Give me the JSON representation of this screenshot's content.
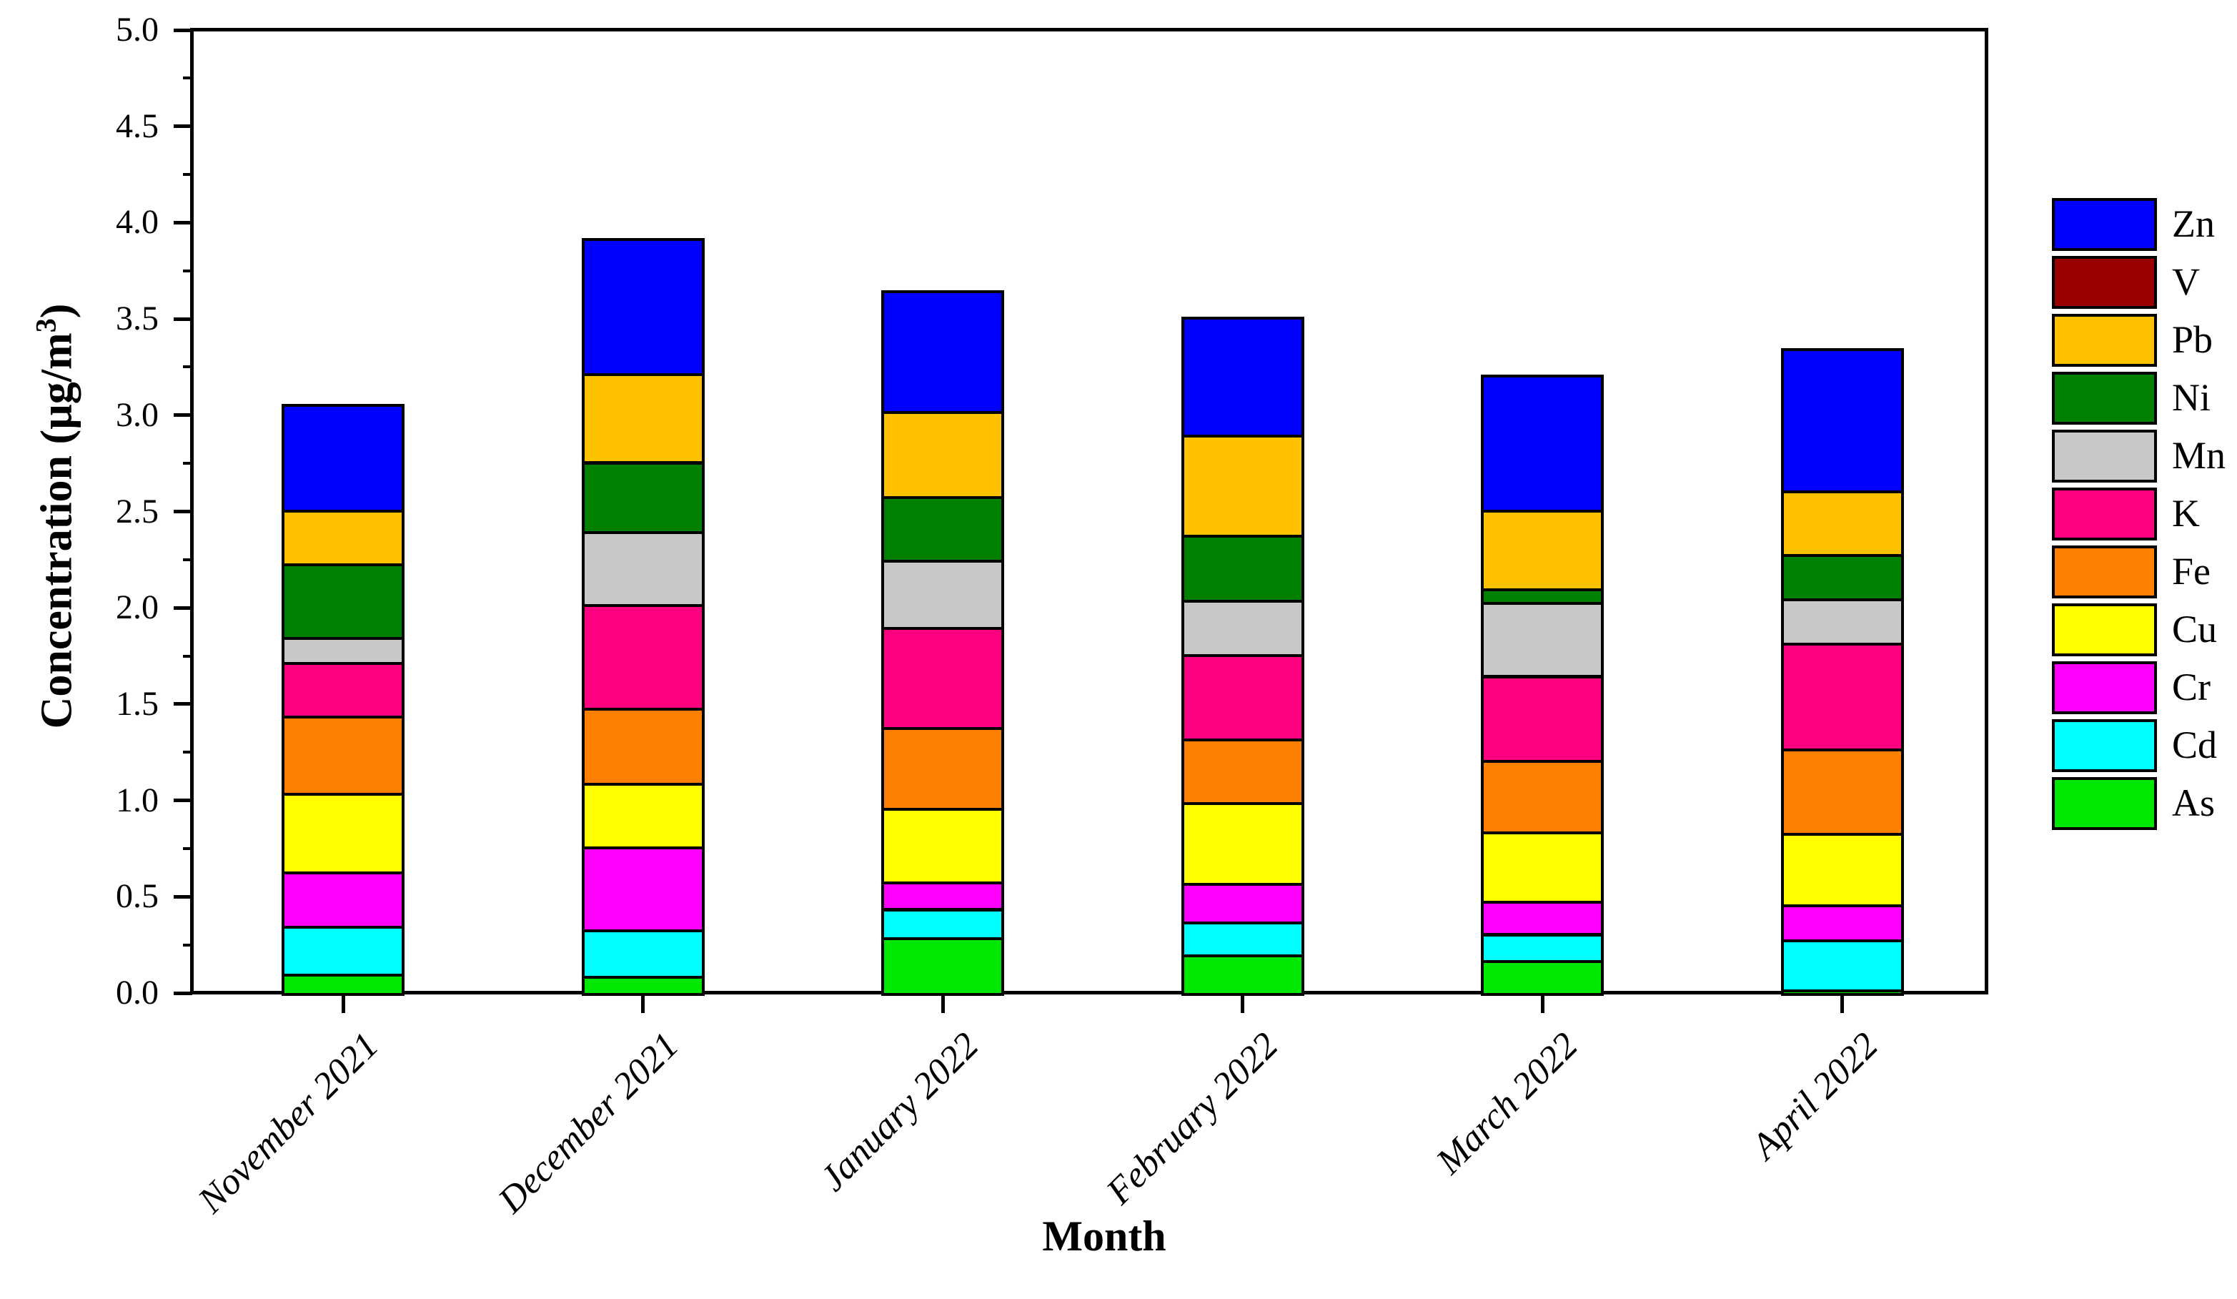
{
  "chart_data": {
    "type": "bar",
    "stacked": true,
    "title": "",
    "xlabel": "Month",
    "ylabel": "Concentration (µg/m³)",
    "ylabel_display": {
      "main": "Concentration (µg/m",
      "sup": "3",
      "close": ")"
    },
    "ylim": [
      0.0,
      5.0
    ],
    "ytick_labels": [
      "0.0",
      "0.5",
      "1.0",
      "1.5",
      "2.0",
      "2.5",
      "3.0",
      "3.5",
      "4.0",
      "4.5",
      "5.0"
    ],
    "minor_tick_step": 0.25,
    "grid": false,
    "legend_position": "right",
    "categories": [
      "November 2021",
      "December 2021",
      "January 2022",
      "February 2022",
      "March 2022",
      "April 2022"
    ],
    "stack_order_bottom_to_top": [
      "As",
      "Cd",
      "Cr",
      "Cu",
      "Fe",
      "K",
      "Mn",
      "Ni",
      "Pb",
      "V",
      "Zn"
    ],
    "legend_order_top_to_bottom": [
      "Zn",
      "V",
      "Pb",
      "Ni",
      "Mn",
      "K",
      "Fe",
      "Cu",
      "Cr",
      "Cd",
      "As"
    ],
    "series": [
      {
        "name": "As",
        "color": "#00E800",
        "values": [
          0.1,
          0.09,
          0.29,
          0.2,
          0.17,
          0.02
        ]
      },
      {
        "name": "Cd",
        "color": "#00FFFF",
        "values": [
          0.25,
          0.24,
          0.15,
          0.17,
          0.14,
          0.26
        ]
      },
      {
        "name": "Cr",
        "color": "#FF00FF",
        "values": [
          0.28,
          0.43,
          0.14,
          0.2,
          0.17,
          0.18
        ]
      },
      {
        "name": "Cu",
        "color": "#FFFF00",
        "values": [
          0.41,
          0.33,
          0.38,
          0.42,
          0.36,
          0.37
        ]
      },
      {
        "name": "Fe",
        "color": "#FF8000",
        "values": [
          0.4,
          0.39,
          0.42,
          0.33,
          0.37,
          0.44
        ]
      },
      {
        "name": "K",
        "color": "#FF0080",
        "values": [
          0.28,
          0.54,
          0.52,
          0.44,
          0.44,
          0.55
        ]
      },
      {
        "name": "Mn",
        "color": "#C8C8C8",
        "values": [
          0.13,
          0.38,
          0.35,
          0.28,
          0.38,
          0.23
        ]
      },
      {
        "name": "Ni",
        "color": "#008000",
        "values": [
          0.38,
          0.36,
          0.33,
          0.34,
          0.07,
          0.23
        ]
      },
      {
        "name": "Pb",
        "color": "#FFC200",
        "values": [
          0.28,
          0.46,
          0.44,
          0.52,
          0.41,
          0.33
        ]
      },
      {
        "name": "V",
        "color": "#9A0000",
        "values": [
          0.0,
          0.0,
          0.0,
          0.0,
          0.0,
          0.0
        ]
      },
      {
        "name": "Zn",
        "color": "#0000FF",
        "values": [
          0.55,
          0.7,
          0.63,
          0.61,
          0.7,
          0.74
        ]
      }
    ],
    "bar_totals": [
      3.06,
      3.92,
      3.65,
      3.51,
      3.21,
      3.35
    ]
  }
}
